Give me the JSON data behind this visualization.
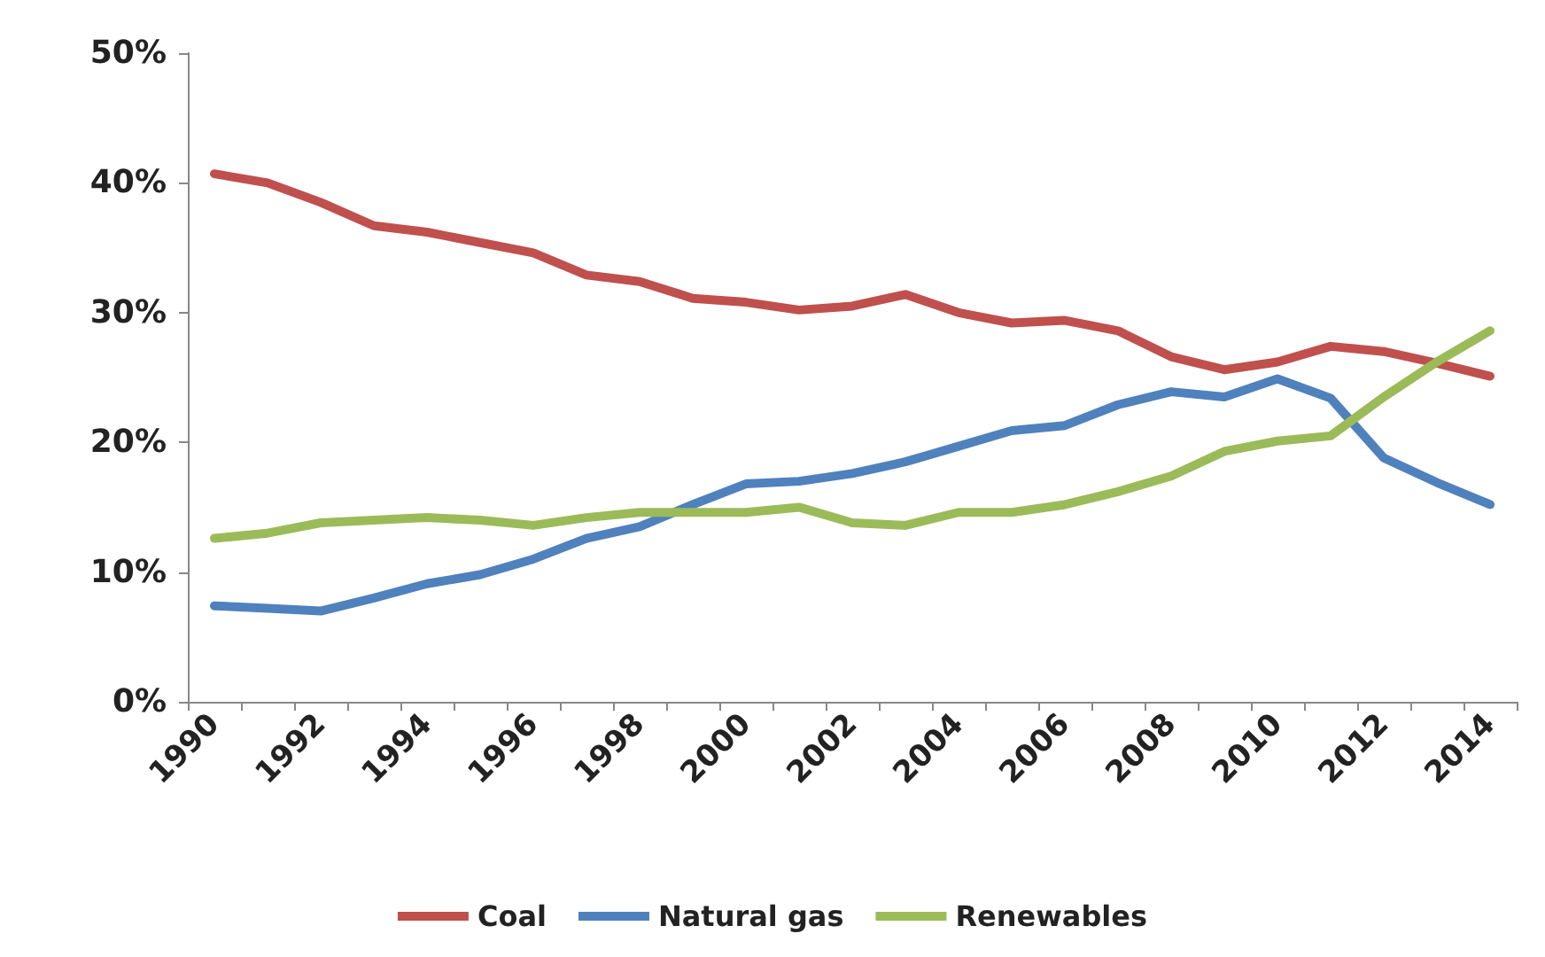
{
  "chart_data": {
    "type": "line",
    "categories": [
      "1990",
      null,
      "1992",
      null,
      "1994",
      null,
      "1996",
      null,
      "1998",
      null,
      "2000",
      null,
      "2002",
      null,
      "2004",
      null,
      "2006",
      null,
      "2008",
      null,
      "2010",
      null,
      "2012",
      null,
      "2014"
    ],
    "series": [
      {
        "name": "Coal",
        "color": "#c0504d",
        "values": [
          40.7,
          40.0,
          38.5,
          36.7,
          36.2,
          35.4,
          34.6,
          32.9,
          32.4,
          31.1,
          30.8,
          30.2,
          30.5,
          31.4,
          30.0,
          29.2,
          29.4,
          28.6,
          26.6,
          25.6,
          26.2,
          27.4,
          27.0,
          26.1,
          25.1
        ]
      },
      {
        "name": "Natural gas",
        "color": "#4f81bd",
        "values": [
          7.4,
          7.2,
          7.0,
          8.0,
          9.1,
          9.8,
          11.0,
          12.6,
          13.5,
          15.2,
          16.8,
          17.0,
          17.6,
          18.5,
          19.7,
          20.9,
          21.3,
          22.9,
          23.9,
          23.5,
          24.9,
          23.4,
          18.8,
          16.9,
          15.2
        ]
      },
      {
        "name": "Renewables",
        "color": "#9bbb59",
        "values": [
          12.6,
          13.0,
          13.8,
          14.0,
          14.2,
          14.0,
          13.6,
          14.2,
          14.6,
          14.6,
          14.6,
          15.0,
          13.8,
          13.6,
          14.6,
          14.6,
          15.2,
          16.2,
          17.4,
          19.3,
          20.1,
          20.5,
          23.5,
          26.2,
          28.6
        ]
      }
    ],
    "ylim": [
      0,
      50
    ],
    "yticks": [
      {
        "value": 0,
        "label": "0%"
      },
      {
        "value": 10,
        "label": "10%"
      },
      {
        "value": 20,
        "label": "20%"
      },
      {
        "value": 30,
        "label": "30%"
      },
      {
        "value": 40,
        "label": "40%"
      },
      {
        "value": 50,
        "label": "50%"
      }
    ],
    "grid": false,
    "legend": "bottom",
    "marker": "none",
    "line_style": "solid"
  }
}
